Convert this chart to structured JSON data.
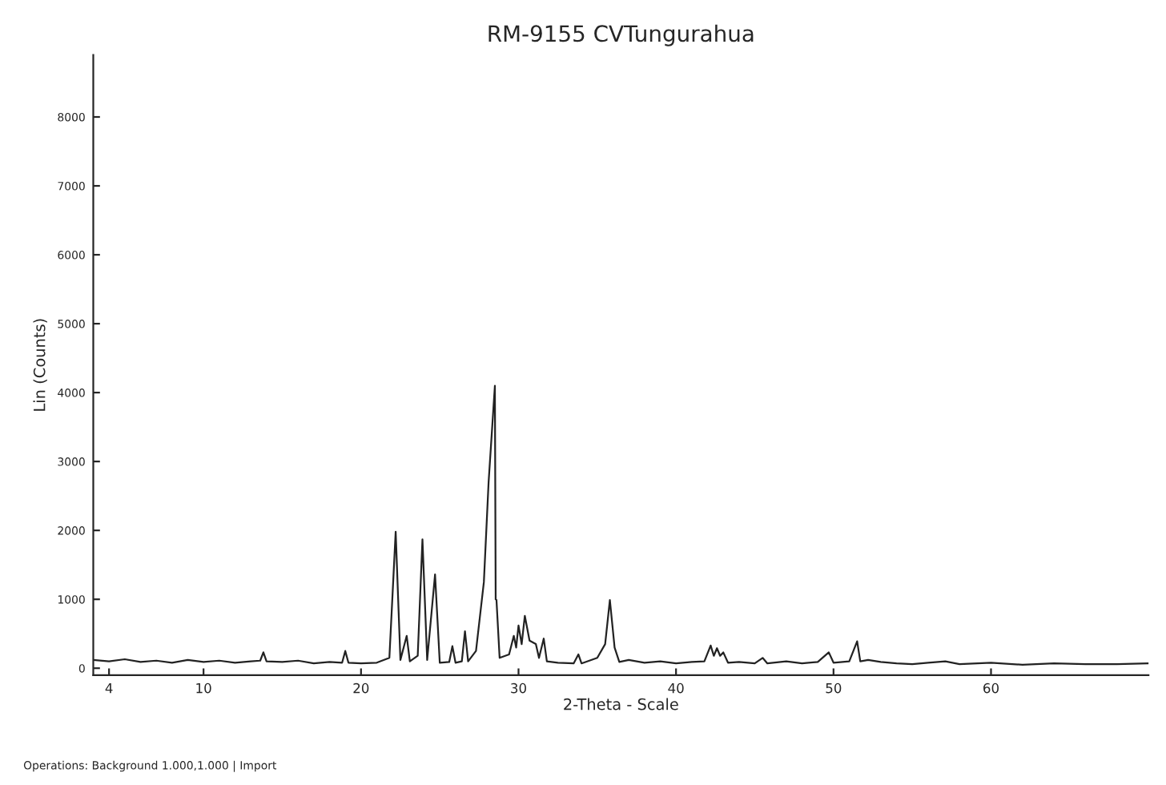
{
  "chart_data": {
    "type": "line",
    "title": "RM-9155 CVTungurahua",
    "xlabel": "2-Theta - Scale",
    "ylabel": "Lin (Counts)",
    "annotations": [
      "Operations: Background 1.000,1.000 | Import"
    ],
    "xlim": [
      3,
      70
    ],
    "xticks": [
      4,
      10,
      20,
      30,
      40,
      50,
      60
    ],
    "ylim": [
      -100,
      8900
    ],
    "yticks": [
      0,
      1000,
      2000,
      3000,
      4000,
      5000,
      6000,
      7000,
      8000
    ],
    "grid": false,
    "legend": false,
    "marker": "none",
    "line_style": "solid",
    "series": [
      {
        "color": "#222222",
        "x": [
          3.0,
          4,
          5,
          6,
          7,
          8,
          9,
          10,
          11,
          12,
          13,
          13.6,
          13.8,
          14.0,
          15,
          16,
          17,
          18,
          18.8,
          19.0,
          19.2,
          20,
          21,
          21.8,
          22.2,
          22.5,
          22.9,
          23.1,
          23.6,
          23.9,
          24.2,
          24.7,
          25.0,
          25.6,
          25.8,
          26.0,
          26.4,
          26.6,
          26.8,
          27.3,
          27.8,
          28.1,
          28.5,
          28.55,
          28.6,
          28.8,
          29.4,
          29.7,
          29.85,
          30.0,
          30.2,
          30.4,
          30.7,
          31.1,
          31.3,
          31.6,
          31.8,
          32.5,
          33.5,
          33.8,
          34.0,
          35.0,
          35.5,
          35.8,
          36.1,
          36.4,
          37,
          38,
          39,
          40,
          41,
          41.8,
          42.2,
          42.4,
          42.6,
          42.8,
          43.0,
          43.3,
          44,
          45,
          45.5,
          45.8,
          47,
          48,
          49,
          49.7,
          50,
          51,
          51.5,
          51.7,
          52.2,
          53,
          54,
          55,
          56,
          57.1,
          58,
          60,
          62,
          64,
          66,
          68,
          70
        ],
        "values": [
          120,
          100,
          130,
          90,
          110,
          80,
          120,
          90,
          110,
          80,
          100,
          110,
          230,
          100,
          90,
          110,
          70,
          90,
          80,
          250,
          80,
          70,
          80,
          150,
          1980,
          120,
          470,
          100,
          180,
          1870,
          120,
          1360,
          80,
          90,
          320,
          80,
          100,
          535,
          100,
          250,
          1250,
          2700,
          4100,
          1000,
          990,
          150,
          200,
          470,
          300,
          620,
          350,
          760,
          400,
          350,
          150,
          430,
          100,
          80,
          70,
          200,
          70,
          150,
          350,
          990,
          300,
          90,
          120,
          80,
          100,
          70,
          90,
          100,
          330,
          180,
          290,
          180,
          230,
          80,
          90,
          70,
          150,
          70,
          100,
          70,
          90,
          230,
          80,
          100,
          390,
          100,
          120,
          90,
          70,
          60,
          80,
          100,
          60,
          80,
          50,
          70,
          60,
          60,
          70
        ]
      }
    ]
  }
}
